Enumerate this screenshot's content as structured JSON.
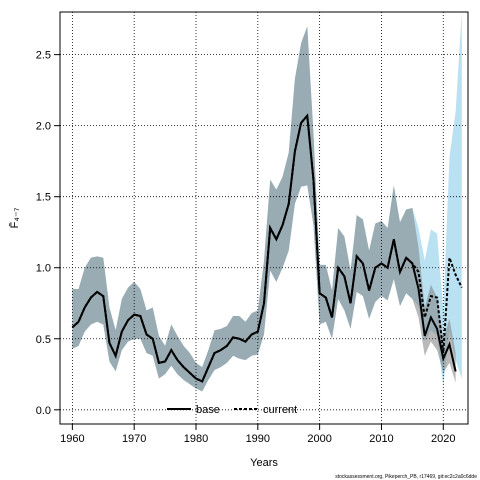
{
  "chart_data": {
    "type": "line",
    "title": "",
    "xlabel": "Years",
    "ylabel": "F̄₄₋₇",
    "xlim": [
      1958,
      2024
    ],
    "ylim": [
      -0.1,
      2.8
    ],
    "x_ticks": [
      1960,
      1970,
      1980,
      1990,
      2000,
      2010,
      2020
    ],
    "y_ticks": [
      0.0,
      0.5,
      1.0,
      1.5,
      2.0,
      2.5
    ],
    "y_tick_labels": [
      "0.0",
      "0.5",
      "1.0",
      "1.5",
      "2.0",
      "2.5"
    ],
    "grid": true,
    "legend_position": "bottom-center",
    "x": [
      1960,
      1961,
      1962,
      1963,
      1964,
      1965,
      1966,
      1967,
      1968,
      1969,
      1970,
      1971,
      1972,
      1973,
      1974,
      1975,
      1976,
      1977,
      1978,
      1979,
      1980,
      1981,
      1982,
      1983,
      1984,
      1985,
      1986,
      1987,
      1988,
      1989,
      1990,
      1991,
      1992,
      1993,
      1994,
      1995,
      1996,
      1997,
      1998,
      1999,
      2000,
      2001,
      2002,
      2003,
      2004,
      2005,
      2006,
      2007,
      2008,
      2009,
      2010,
      2011,
      2012,
      2013,
      2014,
      2015,
      2016,
      2017,
      2018,
      2019,
      2020,
      2021,
      2022,
      2023
    ],
    "series": [
      {
        "name": "current",
        "color": "#000000",
        "line_style": "dashed",
        "values": [
          0.58,
          0.62,
          0.72,
          0.79,
          0.83,
          0.8,
          0.47,
          0.38,
          0.55,
          0.63,
          0.67,
          0.66,
          0.53,
          0.5,
          0.33,
          0.34,
          0.42,
          0.35,
          0.3,
          0.26,
          0.22,
          0.2,
          0.3,
          0.4,
          0.42,
          0.45,
          0.51,
          0.5,
          0.48,
          0.53,
          0.55,
          0.75,
          1.28,
          1.2,
          1.3,
          1.45,
          1.82,
          2.02,
          2.07,
          1.62,
          0.82,
          0.79,
          0.65,
          1.0,
          0.94,
          0.75,
          1.08,
          1.03,
          0.84,
          1.0,
          1.03,
          1.0,
          1.2,
          0.97,
          1.07,
          1.03,
          0.97,
          0.65,
          0.8,
          0.79,
          0.4,
          1.07,
          0.95,
          0.86
        ],
        "upper": [
          0.85,
          0.85,
          1.0,
          1.07,
          1.08,
          1.07,
          0.72,
          0.56,
          0.78,
          0.86,
          0.9,
          0.85,
          0.7,
          0.72,
          0.52,
          0.45,
          0.6,
          0.52,
          0.45,
          0.4,
          0.33,
          0.3,
          0.42,
          0.56,
          0.57,
          0.59,
          0.66,
          0.66,
          0.62,
          0.68,
          0.7,
          1.05,
          1.62,
          1.55,
          1.64,
          1.81,
          2.33,
          2.58,
          2.7,
          1.95,
          1.02,
          1.02,
          0.84,
          1.28,
          1.22,
          0.98,
          1.37,
          1.34,
          1.12,
          1.31,
          1.33,
          1.28,
          1.58,
          1.32,
          1.41,
          1.42,
          1.28,
          1.05,
          1.27,
          1.24,
          0.7,
          1.78,
          2.1,
          2.8
        ],
        "lower": [
          0.43,
          0.45,
          0.55,
          0.6,
          0.62,
          0.6,
          0.34,
          0.27,
          0.42,
          0.48,
          0.5,
          0.5,
          0.4,
          0.38,
          0.22,
          0.25,
          0.31,
          0.25,
          0.21,
          0.18,
          0.15,
          0.13,
          0.21,
          0.28,
          0.3,
          0.33,
          0.38,
          0.36,
          0.35,
          0.38,
          0.39,
          0.53,
          0.98,
          0.9,
          1.0,
          1.12,
          1.45,
          1.57,
          1.58,
          1.3,
          0.6,
          0.62,
          0.5,
          0.78,
          0.7,
          0.57,
          0.83,
          0.8,
          0.64,
          0.76,
          0.8,
          0.77,
          0.92,
          0.73,
          0.82,
          0.78,
          0.73,
          0.48,
          0.56,
          0.52,
          0.17,
          0.55,
          0.35,
          0.22
        ],
        "band_color": "#7fc8e8"
      },
      {
        "name": "base",
        "color": "#000000",
        "line_style": "solid",
        "values": [
          0.58,
          0.62,
          0.72,
          0.79,
          0.83,
          0.8,
          0.47,
          0.38,
          0.55,
          0.63,
          0.67,
          0.66,
          0.53,
          0.5,
          0.33,
          0.34,
          0.42,
          0.35,
          0.3,
          0.26,
          0.22,
          0.2,
          0.3,
          0.4,
          0.42,
          0.45,
          0.51,
          0.5,
          0.48,
          0.53,
          0.55,
          0.75,
          1.28,
          1.2,
          1.3,
          1.45,
          1.82,
          2.02,
          2.07,
          1.62,
          0.82,
          0.79,
          0.65,
          1.0,
          0.94,
          0.75,
          1.08,
          1.03,
          0.84,
          1.0,
          1.03,
          1.0,
          1.2,
          0.97,
          1.07,
          1.03,
          0.85,
          0.52,
          0.65,
          0.57,
          0.36,
          0.46,
          0.27,
          null
        ],
        "upper": [
          0.85,
          0.85,
          1.0,
          1.07,
          1.08,
          1.07,
          0.72,
          0.56,
          0.78,
          0.86,
          0.9,
          0.85,
          0.7,
          0.72,
          0.52,
          0.45,
          0.6,
          0.52,
          0.45,
          0.4,
          0.33,
          0.3,
          0.42,
          0.56,
          0.57,
          0.59,
          0.66,
          0.66,
          0.62,
          0.68,
          0.7,
          1.05,
          1.62,
          1.55,
          1.64,
          1.81,
          2.33,
          2.58,
          2.7,
          1.95,
          1.02,
          1.02,
          0.84,
          1.28,
          1.22,
          0.98,
          1.37,
          1.34,
          1.12,
          1.31,
          1.33,
          1.28,
          1.58,
          1.32,
          1.41,
          1.42,
          1.14,
          0.72,
          0.88,
          0.79,
          0.5,
          0.64,
          0.4,
          null
        ],
        "lower": [
          0.43,
          0.45,
          0.55,
          0.6,
          0.62,
          0.6,
          0.34,
          0.27,
          0.42,
          0.48,
          0.5,
          0.5,
          0.4,
          0.38,
          0.22,
          0.25,
          0.31,
          0.25,
          0.21,
          0.18,
          0.15,
          0.13,
          0.21,
          0.28,
          0.3,
          0.33,
          0.38,
          0.36,
          0.35,
          0.38,
          0.39,
          0.53,
          0.98,
          0.9,
          1.0,
          1.12,
          1.45,
          1.57,
          1.58,
          1.3,
          0.6,
          0.62,
          0.5,
          0.78,
          0.7,
          0.57,
          0.83,
          0.8,
          0.64,
          0.76,
          0.8,
          0.77,
          0.92,
          0.73,
          0.82,
          0.78,
          0.65,
          0.38,
          0.48,
          0.42,
          0.26,
          0.33,
          0.19,
          null
        ],
        "band_color": "#808080"
      }
    ],
    "legend": [
      {
        "label": "base",
        "style": "solid"
      },
      {
        "label": "current",
        "style": "dashed"
      }
    ],
    "watermark": "stockassessment.org, Pikeperch_PB, r17469, git:ec2c2a0c6dde"
  }
}
